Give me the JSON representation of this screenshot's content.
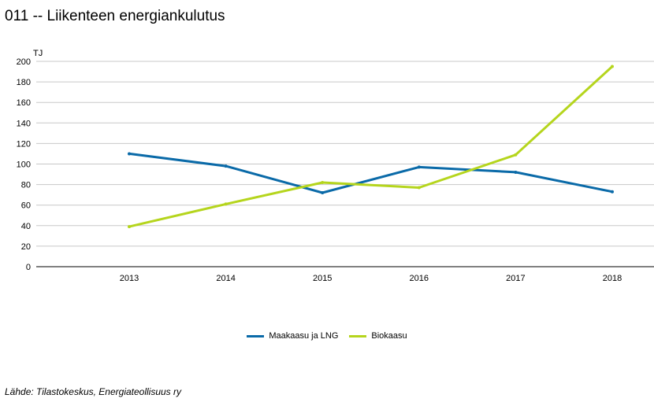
{
  "title": "011 -- Liikenteen energiankulutus",
  "source": "Lähde: Tilastokeskus, Energiateollisuus ry",
  "chart_data": {
    "type": "line",
    "title": "011 -- Liikenteen energiankulutus",
    "xlabel": "",
    "ylabel": "TJ",
    "categories": [
      "2013",
      "2014",
      "2015",
      "2016",
      "2017",
      "2018"
    ],
    "ylim": [
      0,
      200
    ],
    "yticks": [
      0,
      20,
      40,
      60,
      80,
      100,
      120,
      140,
      160,
      180,
      200
    ],
    "grid": true,
    "legend_position": "bottom",
    "series": [
      {
        "name": "Maakaasu ja LNG",
        "color": "#0a6aa8",
        "values": [
          110,
          98,
          72,
          97,
          92,
          73
        ]
      },
      {
        "name": "Biokaasu",
        "color": "#b5d51d",
        "values": [
          39,
          61,
          82,
          77,
          109,
          195
        ]
      }
    ]
  }
}
